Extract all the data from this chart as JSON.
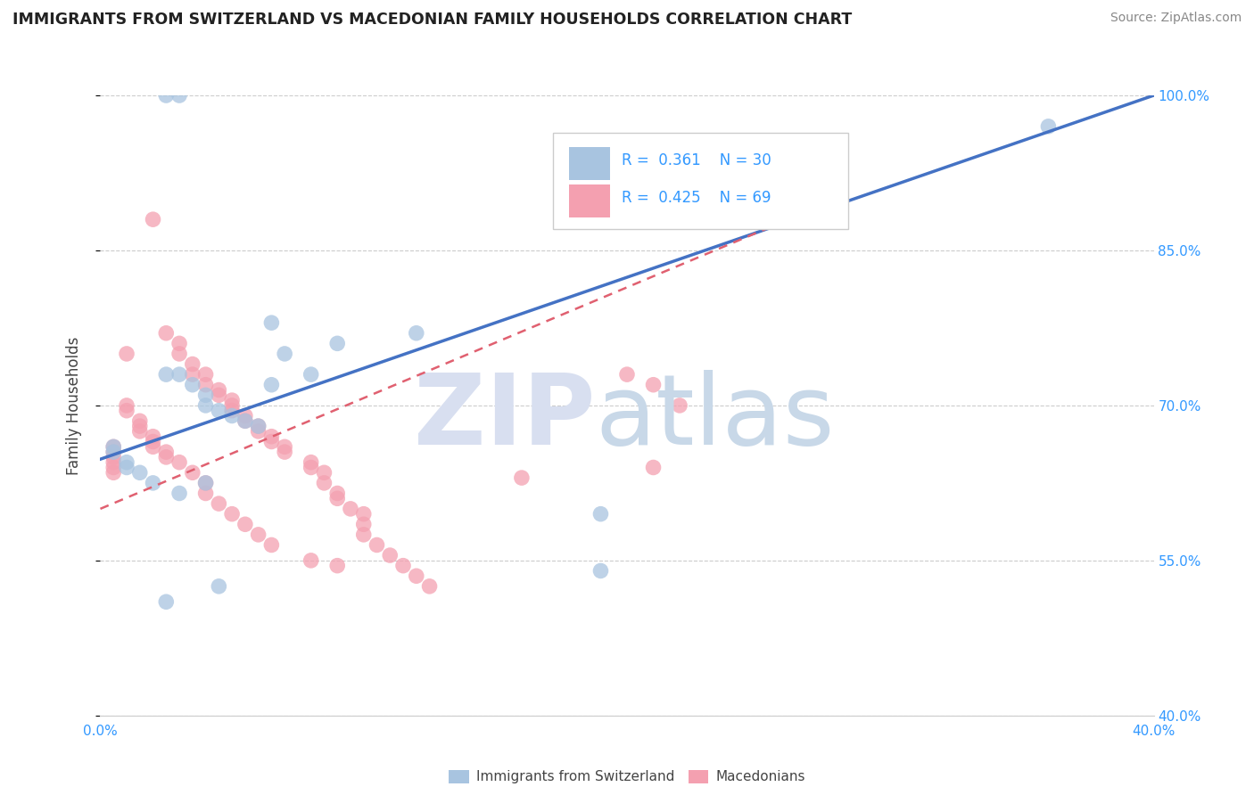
{
  "title": "IMMIGRANTS FROM SWITZERLAND VS MACEDONIAN FAMILY HOUSEHOLDS CORRELATION CHART",
  "source": "Source: ZipAtlas.com",
  "xlabel": "",
  "ylabel": "Family Households",
  "xlim": [
    0.0,
    0.4
  ],
  "ylim": [
    0.4,
    1.0
  ],
  "xticks": [
    0.0,
    0.1,
    0.2,
    0.3,
    0.4
  ],
  "xticklabels": [
    "0.0%",
    "",
    "",
    "",
    "40.0%"
  ],
  "yticks": [
    0.4,
    0.55,
    0.7,
    0.85,
    1.0
  ],
  "yticklabels": [
    "40.0%",
    "55.0%",
    "70.0%",
    "85.0%",
    "100.0%"
  ],
  "blue_R": 0.361,
  "blue_N": 30,
  "pink_R": 0.425,
  "pink_N": 69,
  "blue_color": "#a8c4e0",
  "pink_color": "#f4a0b0",
  "blue_line_color": "#4472C4",
  "pink_line_color": "#E06070",
  "legend_R_N_color": "#3399ff",
  "blue_line_x0": 0.0,
  "blue_line_y0": 0.648,
  "blue_line_x1": 0.4,
  "blue_line_y1": 1.0,
  "pink_line_x0": 0.0,
  "pink_line_y0": 0.6,
  "pink_line_x1": 0.28,
  "pink_line_y1": 0.9,
  "blue_scatter_x": [
    0.025,
    0.03,
    0.065,
    0.07,
    0.09,
    0.12,
    0.025,
    0.03,
    0.035,
    0.04,
    0.04,
    0.045,
    0.05,
    0.055,
    0.06,
    0.065,
    0.08,
    0.005,
    0.005,
    0.01,
    0.01,
    0.015,
    0.02,
    0.03,
    0.04,
    0.19,
    0.19,
    0.36,
    0.045,
    0.025
  ],
  "blue_scatter_y": [
    1.0,
    1.0,
    0.78,
    0.75,
    0.76,
    0.77,
    0.73,
    0.73,
    0.72,
    0.71,
    0.7,
    0.695,
    0.69,
    0.685,
    0.68,
    0.72,
    0.73,
    0.66,
    0.655,
    0.645,
    0.64,
    0.635,
    0.625,
    0.615,
    0.625,
    0.595,
    0.54,
    0.97,
    0.525,
    0.51
  ],
  "pink_scatter_x": [
    0.02,
    0.16,
    0.025,
    0.03,
    0.03,
    0.035,
    0.035,
    0.04,
    0.04,
    0.045,
    0.045,
    0.05,
    0.05,
    0.05,
    0.055,
    0.055,
    0.06,
    0.06,
    0.065,
    0.065,
    0.07,
    0.07,
    0.08,
    0.08,
    0.085,
    0.085,
    0.09,
    0.09,
    0.095,
    0.1,
    0.1,
    0.1,
    0.105,
    0.11,
    0.115,
    0.12,
    0.125,
    0.01,
    0.01,
    0.01,
    0.015,
    0.015,
    0.015,
    0.02,
    0.02,
    0.02,
    0.025,
    0.025,
    0.03,
    0.035,
    0.04,
    0.04,
    0.045,
    0.05,
    0.055,
    0.06,
    0.065,
    0.08,
    0.09,
    0.2,
    0.21,
    0.22,
    0.21,
    0.005,
    0.005,
    0.005,
    0.005,
    0.005,
    0.005
  ],
  "pink_scatter_y": [
    0.88,
    0.63,
    0.77,
    0.76,
    0.75,
    0.74,
    0.73,
    0.73,
    0.72,
    0.715,
    0.71,
    0.705,
    0.7,
    0.695,
    0.69,
    0.685,
    0.68,
    0.675,
    0.67,
    0.665,
    0.66,
    0.655,
    0.645,
    0.64,
    0.635,
    0.625,
    0.615,
    0.61,
    0.6,
    0.595,
    0.585,
    0.575,
    0.565,
    0.555,
    0.545,
    0.535,
    0.525,
    0.75,
    0.7,
    0.695,
    0.685,
    0.68,
    0.675,
    0.67,
    0.665,
    0.66,
    0.655,
    0.65,
    0.645,
    0.635,
    0.625,
    0.615,
    0.605,
    0.595,
    0.585,
    0.575,
    0.565,
    0.55,
    0.545,
    0.73,
    0.72,
    0.7,
    0.64,
    0.66,
    0.655,
    0.65,
    0.645,
    0.64,
    0.635
  ]
}
